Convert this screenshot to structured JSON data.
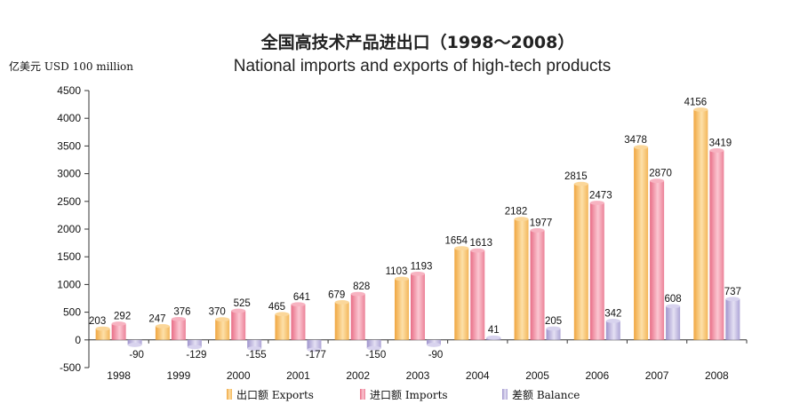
{
  "chart_data": {
    "type": "bar",
    "title": "全国高技术产品进出口（1998～2008）",
    "subtitle": "National imports and exports of high-tech products",
    "ylabel": "亿美元 USD 100 million",
    "xlabel": "",
    "ylim": [
      -500,
      4500
    ],
    "yticks": [
      4500,
      4000,
      3500,
      3000,
      2500,
      2000,
      1500,
      1000,
      500,
      0,
      -500
    ],
    "categories": [
      "1998",
      "1999",
      "2000",
      "2001",
      "2002",
      "2003",
      "2004",
      "2005",
      "2006",
      "2007",
      "2008"
    ],
    "series": [
      {
        "name": "出口额 Exports",
        "color": "#f5c06a",
        "values": [
          203,
          247,
          370,
          465,
          679,
          1103,
          1654,
          2182,
          2815,
          3478,
          4156
        ]
      },
      {
        "name": "进口额 Imports",
        "color": "#ef8ea0",
        "values": [
          292,
          376,
          525,
          641,
          828,
          1193,
          1613,
          1977,
          2473,
          2870,
          3419
        ]
      },
      {
        "name": "差额 Balance",
        "color": "#b9b0dc",
        "values": [
          -90,
          -129,
          -155,
          -177,
          -150,
          -90,
          41,
          205,
          342,
          608,
          737
        ]
      }
    ],
    "legend_position": "bottom-center",
    "grid": false
  }
}
